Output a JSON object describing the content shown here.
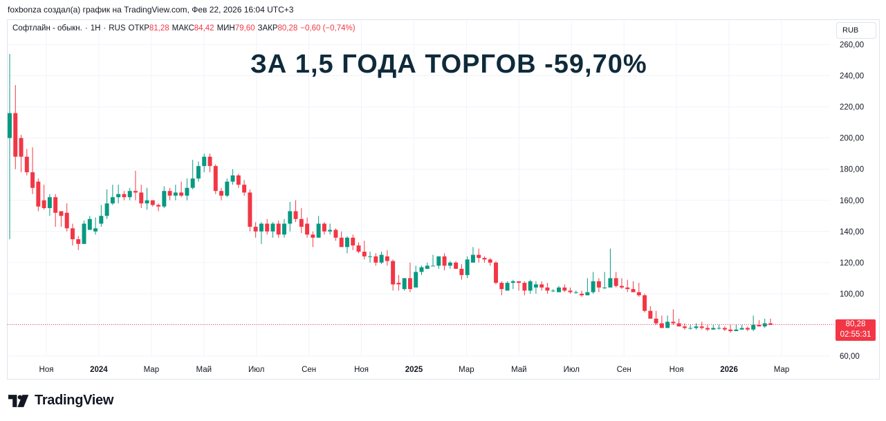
{
  "header": {
    "attribution": "foxbonza создал(а) график на TradingView.com, Фев 22, 2026 16:04 UTC+3"
  },
  "legend": {
    "symbol": "Софтлайн - обыкн.",
    "interval": "1Н",
    "exchange": "RUS",
    "open_label": "ОТКР",
    "open": "81,28",
    "high_label": "МАКС",
    "high": "84,42",
    "low_label": "МИН",
    "low": "79,60",
    "close_label": "ЗАКР",
    "close": "80,28",
    "change": "−0,60 (−0,74%)"
  },
  "currency_button": "RUB",
  "headline": "ЗА 1,5 ГОДА ТОРГОВ -59,70%",
  "price_tag": {
    "price": "80,28",
    "countdown": "02:55:31"
  },
  "brand": {
    "name": "TradingView"
  },
  "colors": {
    "up": "#089981",
    "down": "#f23645",
    "grid": "#f0f3fa",
    "text": "#131722"
  },
  "chart_data": {
    "type": "candlestick",
    "y_ticks": [
      "60,00",
      "80,00",
      "100,00",
      "120,00",
      "140,00",
      "160,00",
      "180,00",
      "200,00",
      "220,00",
      "240,00",
      "260,00"
    ],
    "ylim": [
      60,
      262
    ],
    "x_ticks": [
      {
        "label": "Ноя",
        "bold": false,
        "x": "2023-11"
      },
      {
        "label": "2024",
        "bold": true,
        "x": "2024-01"
      },
      {
        "label": "Мар",
        "bold": false,
        "x": "2024-03"
      },
      {
        "label": "Май",
        "bold": false,
        "x": "2024-05"
      },
      {
        "label": "Июл",
        "bold": false,
        "x": "2024-07"
      },
      {
        "label": "Сен",
        "bold": false,
        "x": "2024-09"
      },
      {
        "label": "Ноя",
        "bold": false,
        "x": "2024-11"
      },
      {
        "label": "2025",
        "bold": true,
        "x": "2025-01"
      },
      {
        "label": "Мар",
        "bold": false,
        "x": "2025-03"
      },
      {
        "label": "Май",
        "bold": false,
        "x": "2025-05"
      },
      {
        "label": "Июл",
        "bold": false,
        "x": "2025-07"
      },
      {
        "label": "Сен",
        "bold": false,
        "x": "2025-09"
      },
      {
        "label": "Ноя",
        "bold": false,
        "x": "2025-11"
      },
      {
        "label": "2026",
        "bold": true,
        "x": "2026-01"
      },
      {
        "label": "Мар",
        "bold": false,
        "x": "2026-03"
      }
    ],
    "last_price": 80.28,
    "candles": [
      [
        200,
        216,
        135,
        254
      ],
      [
        216,
        188,
        180,
        234
      ],
      [
        200,
        188,
        178,
        202
      ],
      [
        188,
        178,
        176,
        193
      ],
      [
        178,
        168,
        164,
        194
      ],
      [
        172,
        156,
        153,
        174
      ],
      [
        160,
        155,
        154,
        170
      ],
      [
        155,
        162,
        150,
        164
      ],
      [
        162,
        152,
        143,
        164
      ],
      [
        153,
        150,
        143,
        153
      ],
      [
        152,
        142,
        140,
        158
      ],
      [
        142,
        135,
        131,
        145
      ],
      [
        135,
        132,
        128,
        137
      ],
      [
        132,
        145,
        132,
        147
      ],
      [
        141,
        148,
        142,
        150
      ],
      [
        140,
        142,
        138,
        149
      ],
      [
        145,
        150,
        143,
        157
      ],
      [
        150,
        158,
        148,
        167
      ],
      [
        158,
        162,
        157,
        170
      ],
      [
        162,
        164,
        158,
        170
      ],
      [
        164,
        162,
        160,
        166
      ],
      [
        162,
        166,
        160,
        168
      ],
      [
        166,
        165,
        160,
        179
      ],
      [
        165,
        158,
        155,
        170
      ],
      [
        158,
        160,
        154,
        168
      ],
      [
        160,
        157,
        156,
        160
      ],
      [
        157,
        156,
        153,
        158
      ],
      [
        156,
        166,
        155,
        169
      ],
      [
        166,
        163,
        160,
        168
      ],
      [
        163,
        165,
        160,
        170
      ],
      [
        165,
        163,
        162,
        172
      ],
      [
        163,
        168,
        160,
        174
      ],
      [
        168,
        174,
        167,
        186
      ],
      [
        174,
        182,
        172,
        185
      ],
      [
        182,
        188,
        178,
        190
      ],
      [
        188,
        182,
        178,
        190
      ],
      [
        182,
        166,
        164,
        183
      ],
      [
        166,
        163,
        160,
        168
      ],
      [
        163,
        172,
        162,
        174
      ],
      [
        172,
        176,
        170,
        180
      ],
      [
        176,
        170,
        168,
        177
      ],
      [
        170,
        165,
        163,
        173
      ],
      [
        165,
        143,
        140,
        167
      ],
      [
        143,
        140,
        136,
        146
      ],
      [
        140,
        145,
        132,
        146
      ],
      [
        145,
        140,
        138,
        148
      ],
      [
        140,
        145,
        136,
        146
      ],
      [
        145,
        138,
        136,
        147
      ],
      [
        138,
        145,
        136,
        148
      ],
      [
        145,
        153,
        140,
        159
      ],
      [
        153,
        148,
        146,
        160
      ],
      [
        148,
        143,
        139,
        155
      ],
      [
        145,
        138,
        136,
        149
      ],
      [
        138,
        136,
        130,
        140
      ],
      [
        136,
        145,
        136,
        150
      ],
      [
        145,
        140,
        138,
        146
      ],
      [
        140,
        141,
        138,
        145
      ],
      [
        141,
        136,
        134,
        142
      ],
      [
        136,
        130,
        130,
        140
      ],
      [
        130,
        136,
        126,
        137
      ],
      [
        136,
        131,
        128,
        138
      ],
      [
        131,
        127,
        126,
        133
      ],
      [
        127,
        124,
        122,
        134
      ],
      [
        124,
        124,
        120,
        127
      ],
      [
        124,
        120,
        118,
        126
      ],
      [
        120,
        125,
        119,
        127
      ],
      [
        124,
        121,
        118,
        128
      ],
      [
        121,
        106,
        102,
        122
      ],
      [
        107,
        106,
        102,
        112
      ],
      [
        103,
        110,
        102,
        110
      ],
      [
        110,
        103,
        101,
        120
      ],
      [
        104,
        114,
        104,
        118
      ],
      [
        114,
        117,
        112,
        118
      ],
      [
        116,
        118,
        116,
        120
      ],
      [
        118,
        118,
        118,
        125
      ],
      [
        118,
        124,
        116,
        124
      ],
      [
        124,
        118,
        115,
        126
      ],
      [
        118,
        120,
        116,
        121
      ],
      [
        120,
        116,
        116,
        121
      ],
      [
        116,
        112,
        109,
        119
      ],
      [
        112,
        122,
        110,
        124
      ],
      [
        120,
        125,
        122,
        130
      ],
      [
        125,
        123,
        120,
        129
      ],
      [
        123,
        122,
        120,
        124
      ],
      [
        122,
        120,
        118,
        123
      ],
      [
        120,
        107,
        106,
        121
      ],
      [
        107,
        103,
        99,
        108
      ],
      [
        102,
        107,
        104,
        108
      ],
      [
        107,
        108,
        103,
        109
      ],
      [
        108,
        107,
        102,
        108
      ],
      [
        107,
        102,
        99,
        108
      ],
      [
        102,
        108,
        100,
        109
      ],
      [
        104,
        106,
        100,
        108
      ],
      [
        106,
        104,
        102,
        108
      ],
      [
        104,
        102,
        100,
        107
      ],
      [
        102,
        102,
        101,
        103
      ],
      [
        101,
        104,
        101,
        105
      ],
      [
        104,
        102,
        101,
        106
      ],
      [
        102,
        101,
        100,
        104
      ],
      [
        101,
        101,
        100,
        102
      ],
      [
        100,
        99,
        98,
        102
      ],
      [
        99,
        101,
        99,
        110
      ],
      [
        101,
        108,
        100,
        114
      ],
      [
        108,
        104,
        101,
        110
      ],
      [
        104,
        104,
        103,
        114
      ],
      [
        104,
        110,
        104,
        129
      ],
      [
        110,
        105,
        104,
        114
      ],
      [
        105,
        104,
        103,
        110
      ],
      [
        104,
        103,
        101,
        109
      ],
      [
        103,
        101,
        101,
        108
      ],
      [
        101,
        99,
        98,
        107
      ],
      [
        99,
        89,
        88,
        100
      ],
      [
        89,
        84,
        84,
        92
      ],
      [
        84,
        81,
        80,
        89
      ],
      [
        81,
        78,
        78,
        86
      ],
      [
        78,
        82,
        78,
        86
      ],
      [
        82,
        81,
        80,
        90
      ],
      [
        81,
        79,
        79,
        84
      ],
      [
        79,
        78,
        77,
        81
      ],
      [
        78,
        78,
        77,
        80
      ],
      [
        78,
        79,
        77,
        81
      ],
      [
        79,
        78,
        77,
        82
      ],
      [
        78,
        77,
        76,
        80
      ],
      [
        77,
        78,
        77,
        80
      ],
      [
        78,
        78,
        77,
        80
      ],
      [
        78,
        77,
        76,
        79
      ],
      [
        77,
        76,
        75,
        80
      ],
      [
        76,
        77,
        76,
        80
      ],
      [
        77,
        78,
        77,
        80
      ],
      [
        78,
        77,
        76,
        79
      ],
      [
        77,
        80,
        76,
        86
      ],
      [
        80,
        79,
        79,
        83
      ],
      [
        79,
        81,
        78,
        84
      ],
      [
        81,
        80,
        80,
        84
      ]
    ]
  }
}
